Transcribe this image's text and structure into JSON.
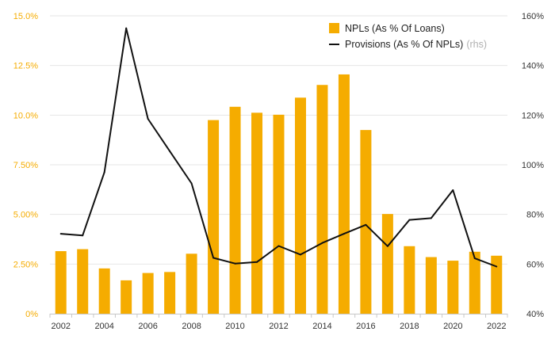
{
  "colors": {
    "bar": "#f5ac00",
    "line": "#111111",
    "left_axis_text": "#f5ac00",
    "grid": "#e6e6e6",
    "axis": "#c8c8c8"
  },
  "chart_data": {
    "type": "bar",
    "categories": [
      "2002",
      "2003",
      "2004",
      "2005",
      "2006",
      "2007",
      "2008",
      "2009",
      "2010",
      "2011",
      "2012",
      "2013",
      "2014",
      "2015",
      "2016",
      "2017",
      "2018",
      "2019",
      "2020",
      "2021",
      "2022"
    ],
    "series": [
      {
        "name": "NPLs (As % Of Loans)",
        "type": "bar",
        "axis": "left",
        "values": [
          3.15,
          3.25,
          2.28,
          1.68,
          2.05,
          2.1,
          3.02,
          9.75,
          10.42,
          10.12,
          10.02,
          10.88,
          11.52,
          12.05,
          9.25,
          5.02,
          3.4,
          2.85,
          2.67,
          3.12,
          2.92
        ]
      },
      {
        "name": "Provisions (As % Of NPLs)",
        "name_suffix": "(rhs)",
        "type": "line",
        "axis": "right",
        "values": [
          72.2,
          71.5,
          97,
          155,
          118.5,
          105.5,
          92.5,
          62.5,
          60.2,
          60.8,
          67.3,
          63.8,
          68.5,
          72.2,
          75.8,
          67.2,
          77.8,
          78.5,
          89.8,
          62.3,
          59
        ]
      }
    ],
    "x_tick_labels": [
      "2002",
      "2004",
      "2006",
      "2008",
      "2010",
      "2012",
      "2014",
      "2016",
      "2018",
      "2020",
      "2022"
    ],
    "y_left": {
      "ylim": [
        0,
        15
      ],
      "ticks": [
        "0%",
        "2.50%",
        "5.00%",
        "7.50%",
        "10.0%",
        "12.5%",
        "15.0%"
      ]
    },
    "y_right": {
      "ylim": [
        40,
        160
      ],
      "ticks": [
        "40%",
        "60%",
        "80%",
        "100%",
        "120%",
        "140%",
        "160%"
      ]
    },
    "legend_position": "top-right",
    "grid": true
  }
}
